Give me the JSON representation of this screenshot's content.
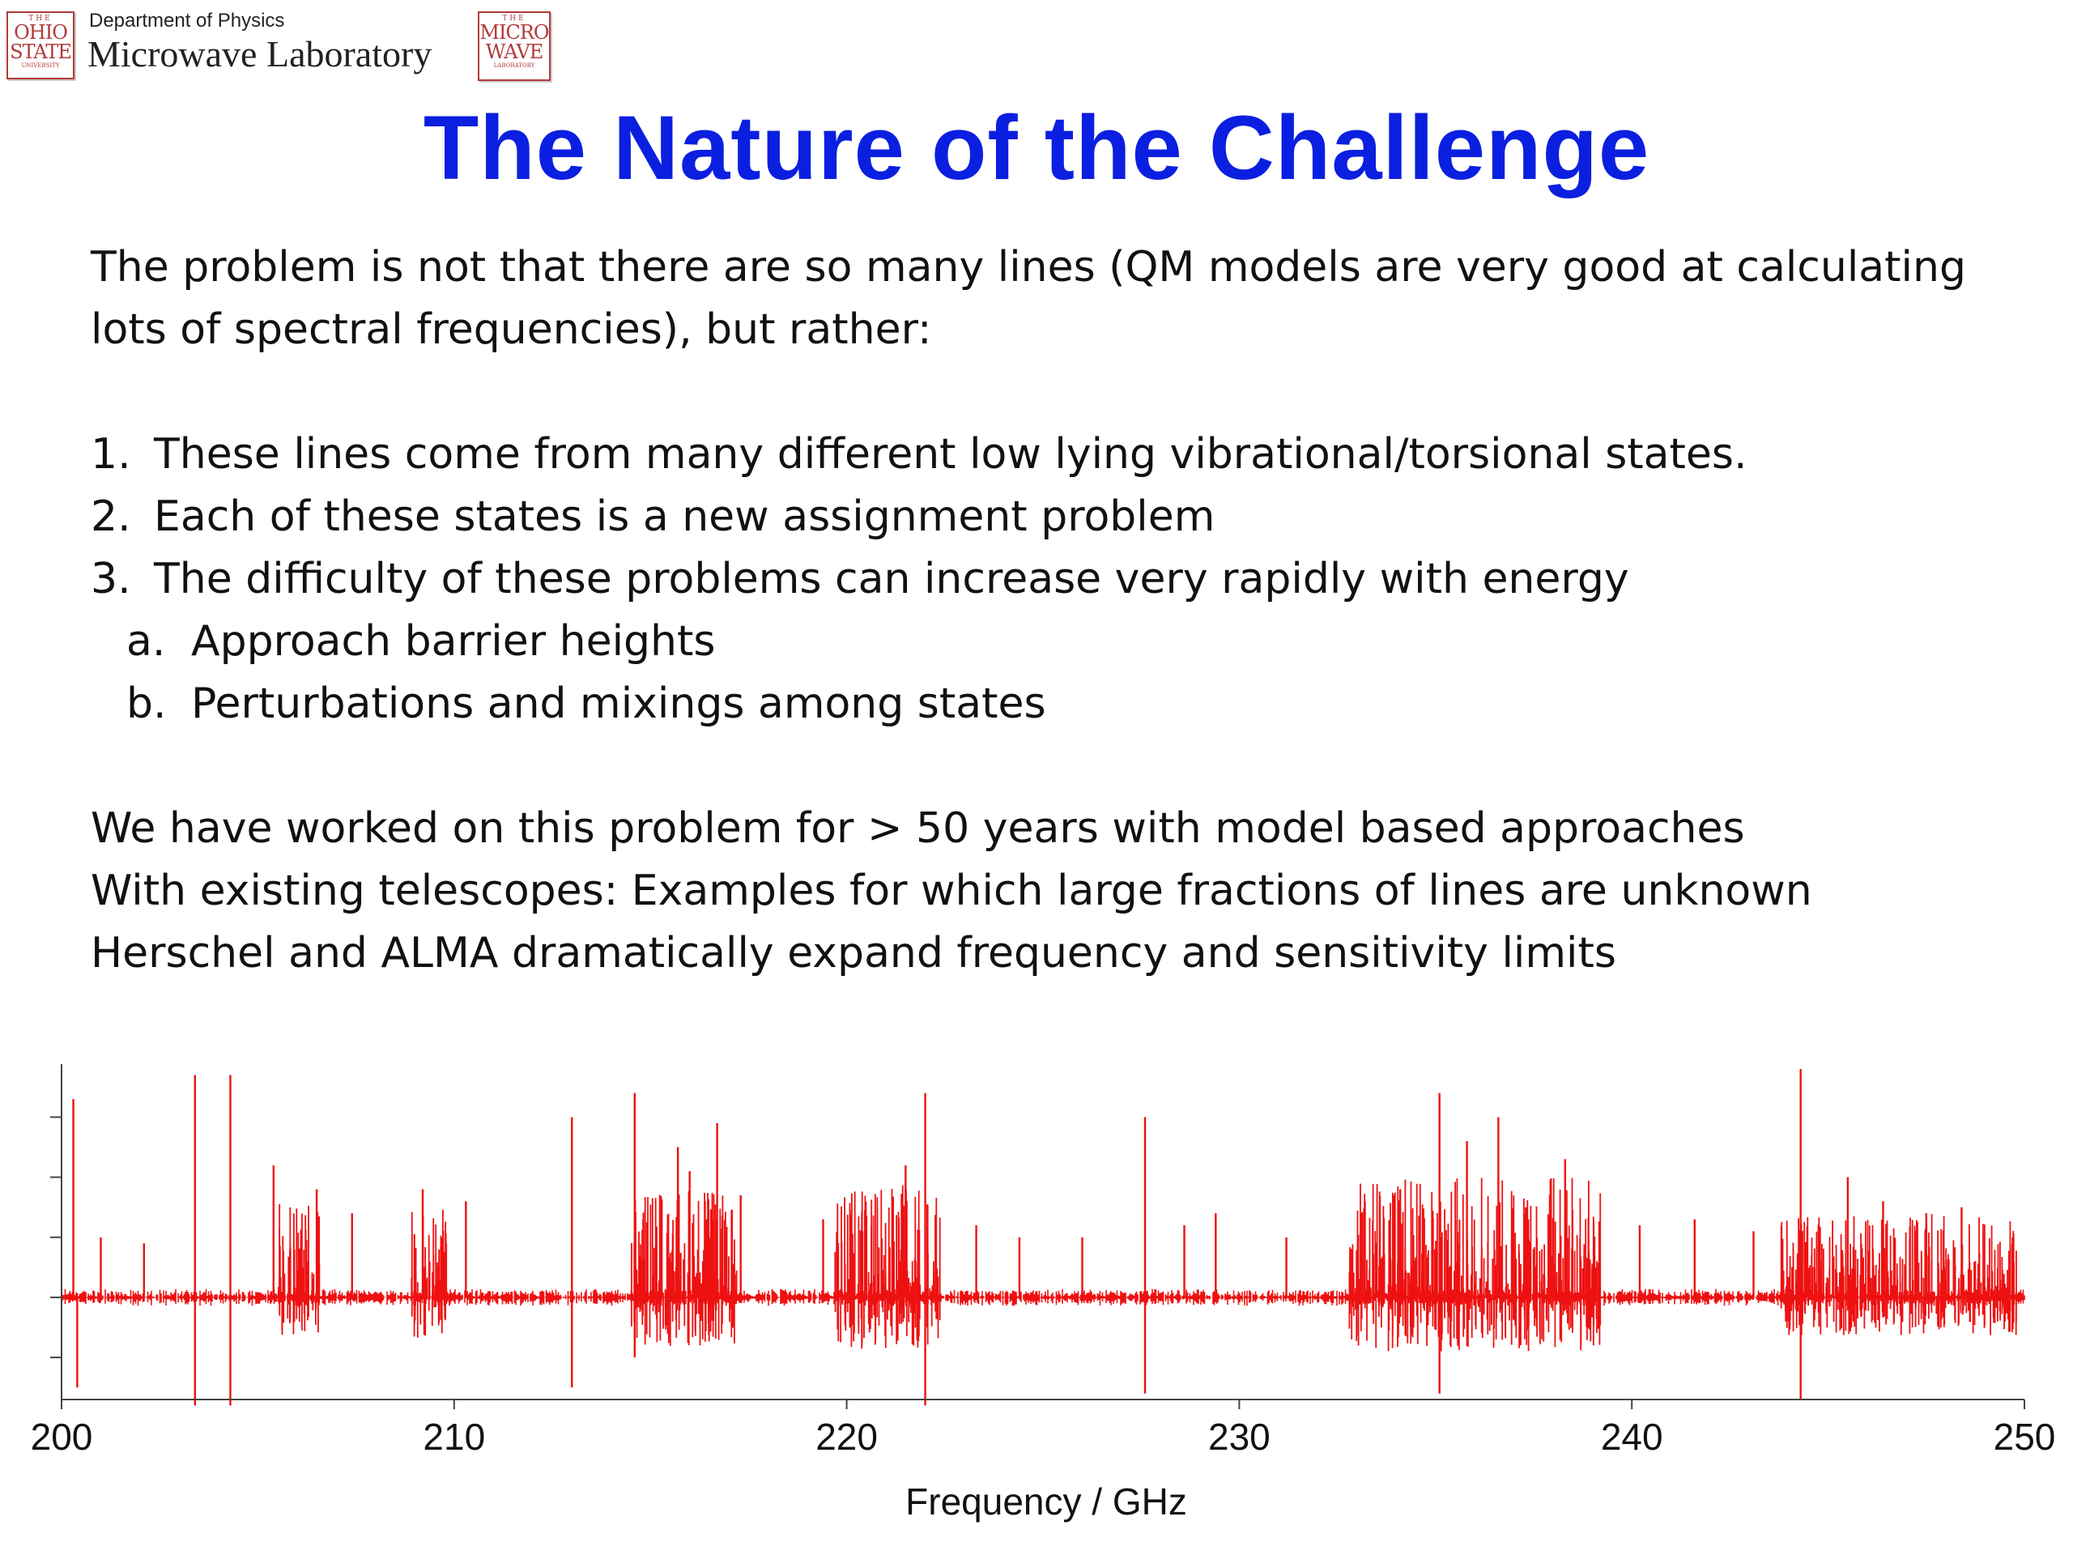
{
  "header": {
    "department": "Department of Physics",
    "lab_name": "Microwave Laboratory",
    "logo_osu": {
      "top": "THE",
      "line1": "OHIO",
      "line2": "STATE",
      "bottom": "UNIVERSITY"
    },
    "logo_mw": {
      "top": "THE",
      "line1": "MICRO",
      "line2": "WAVE",
      "bottom": "LABORATORY"
    },
    "seal_color": "#b23a3a"
  },
  "title": "The Nature of the Challenge",
  "title_color": "#0b1fe0",
  "intro": "The problem is not that there are so many lines (QM models are very good at calculating lots of spectral frequencies), but rather:",
  "list": [
    {
      "num": "1.",
      "text": "These lines come from many different low lying vibrational/torsional states."
    },
    {
      "num": "2.",
      "text": "Each of these states is a new assignment problem"
    },
    {
      "num": "3.",
      "text": "The difficulty of these problems can increase very rapidly with energy"
    }
  ],
  "sublist": [
    {
      "num": "a.",
      "text": "Approach barrier heights"
    },
    {
      "num": "b.",
      "text": "Perturbations and mixings among states"
    }
  ],
  "closing": [
    "We have worked on this problem for > 50 years with model based approaches",
    "With existing telescopes:  Examples for which large fractions of lines are unknown",
    "Herschel and ALMA dramatically expand frequency and sensitivity limits"
  ],
  "chart_data": {
    "type": "line",
    "title": "",
    "xlabel": "Frequency / GHz",
    "ylabel": "",
    "xlim": [
      200,
      250
    ],
    "x_ticks": [
      "200",
      "210",
      "220",
      "230",
      "240",
      "250"
    ],
    "ylim": [
      -1.7,
      3.8
    ],
    "y_tick_labels_shown": false,
    "color": "#ee1111",
    "grid": false,
    "peak_lines": [
      {
        "x": 200.3,
        "y": 3.3
      },
      {
        "x": 200.4,
        "y": -1.5
      },
      {
        "x": 201.0,
        "y": 1.0
      },
      {
        "x": 202.1,
        "y": 0.9
      },
      {
        "x": 203.4,
        "y": 3.7
      },
      {
        "x": 203.4,
        "y": -1.8
      },
      {
        "x": 204.3,
        "y": 3.7
      },
      {
        "x": 204.3,
        "y": -1.8
      },
      {
        "x": 205.4,
        "y": 2.2
      },
      {
        "x": 206.5,
        "y": 1.8
      },
      {
        "x": 207.4,
        "y": 1.4
      },
      {
        "x": 209.2,
        "y": 1.8
      },
      {
        "x": 210.3,
        "y": 1.6
      },
      {
        "x": 213.0,
        "y": 3.0
      },
      {
        "x": 213.0,
        "y": -1.5
      },
      {
        "x": 214.6,
        "y": 3.4
      },
      {
        "x": 214.6,
        "y": -1.0
      },
      {
        "x": 215.7,
        "y": 2.5
      },
      {
        "x": 216.0,
        "y": 2.1
      },
      {
        "x": 216.7,
        "y": 2.9
      },
      {
        "x": 217.3,
        "y": 1.7
      },
      {
        "x": 219.4,
        "y": 1.3
      },
      {
        "x": 220.4,
        "y": 1.1
      },
      {
        "x": 221.5,
        "y": 2.2
      },
      {
        "x": 222.0,
        "y": 3.4
      },
      {
        "x": 222.0,
        "y": -1.8
      },
      {
        "x": 223.3,
        "y": 1.2
      },
      {
        "x": 224.4,
        "y": 1.0
      },
      {
        "x": 226.0,
        "y": 1.0
      },
      {
        "x": 227.6,
        "y": 3.0
      },
      {
        "x": 227.6,
        "y": -1.6
      },
      {
        "x": 228.6,
        "y": 1.2
      },
      {
        "x": 229.4,
        "y": 1.4
      },
      {
        "x": 231.2,
        "y": 1.0
      },
      {
        "x": 233.2,
        "y": 1.6
      },
      {
        "x": 234.1,
        "y": 1.8
      },
      {
        "x": 235.1,
        "y": 3.4
      },
      {
        "x": 235.1,
        "y": -1.6
      },
      {
        "x": 235.8,
        "y": 2.6
      },
      {
        "x": 236.6,
        "y": 3.0
      },
      {
        "x": 237.3,
        "y": 1.5
      },
      {
        "x": 238.3,
        "y": 2.3
      },
      {
        "x": 240.2,
        "y": 1.2
      },
      {
        "x": 241.6,
        "y": 1.3
      },
      {
        "x": 243.1,
        "y": 1.1
      },
      {
        "x": 244.3,
        "y": 3.8
      },
      {
        "x": 244.3,
        "y": -1.7
      },
      {
        "x": 245.5,
        "y": 2.0
      },
      {
        "x": 246.4,
        "y": 1.6
      },
      {
        "x": 247.5,
        "y": 1.4
      },
      {
        "x": 248.4,
        "y": 1.5
      },
      {
        "x": 249.7,
        "y": 1.0
      }
    ],
    "dense_regions": [
      {
        "from": 205.5,
        "to": 206.6,
        "amp": 1.6
      },
      {
        "from": 208.9,
        "to": 209.9,
        "amp": 1.5
      },
      {
        "from": 214.5,
        "to": 217.2,
        "amp": 1.8
      },
      {
        "from": 219.7,
        "to": 222.4,
        "amp": 1.9
      },
      {
        "from": 232.8,
        "to": 239.2,
        "amp": 2.0
      },
      {
        "from": 243.8,
        "to": 249.8,
        "amp": 1.4
      }
    ]
  }
}
